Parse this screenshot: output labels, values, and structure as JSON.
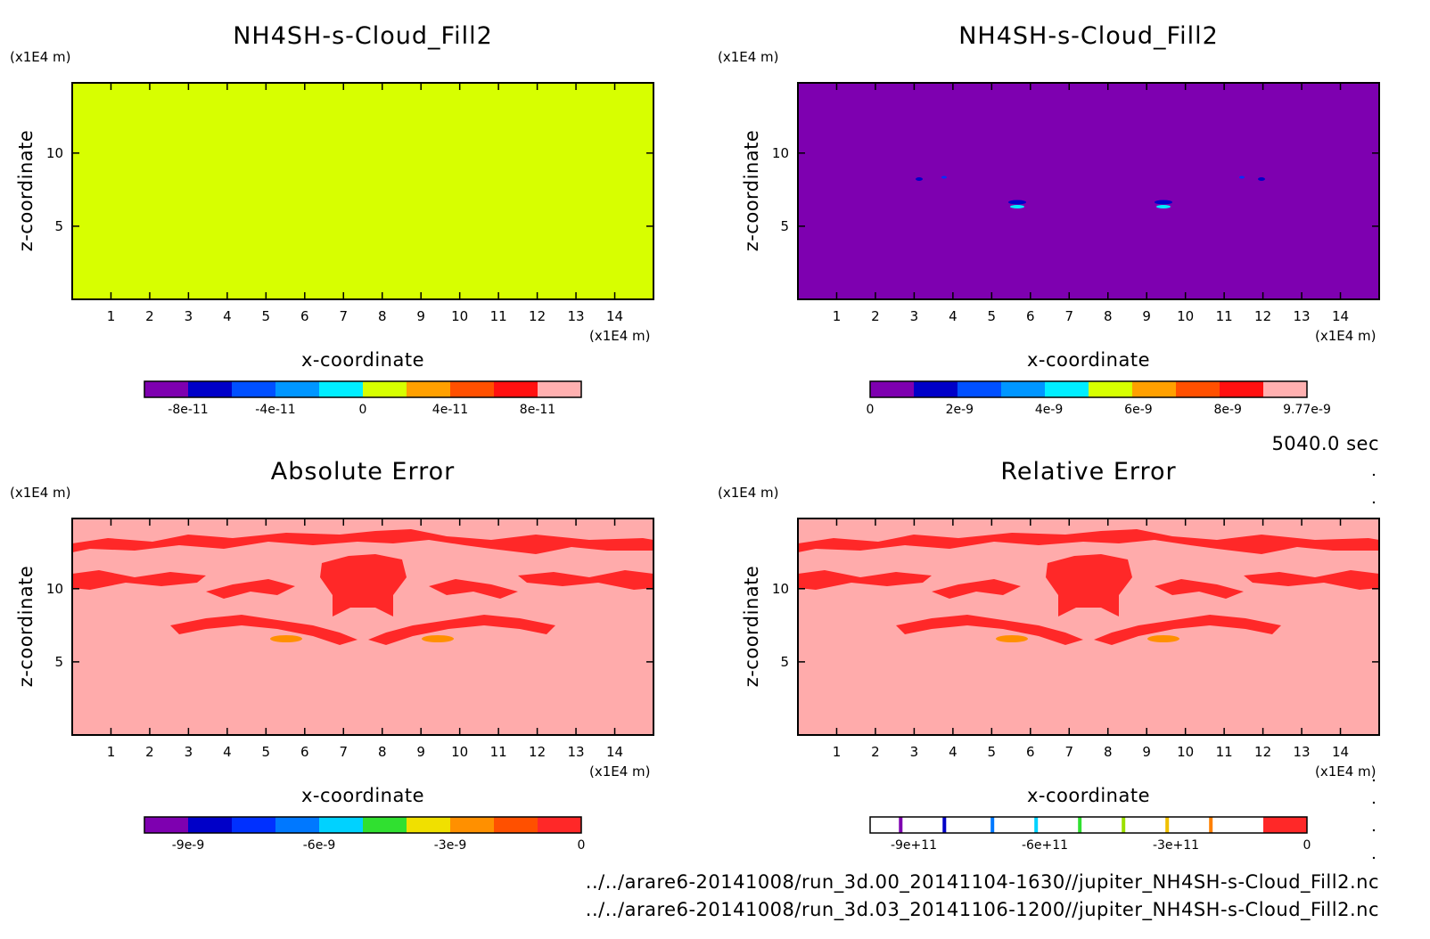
{
  "chart_data": [
    {
      "type": "heatmap",
      "title": "NH4SH-s-Cloud_Fill2",
      "xlabel": "x-coordinate",
      "ylabel": "z-coordinate",
      "x_unit": "(x1E4 m)",
      "y_unit": "(x1E4 m)",
      "xlim": [
        0,
        15
      ],
      "ylim": [
        0,
        14.8
      ],
      "xticks": [
        1,
        2,
        3,
        4,
        5,
        6,
        7,
        8,
        9,
        10,
        11,
        12,
        13,
        14
      ],
      "yticks": [
        5,
        10
      ],
      "field": "uniform",
      "fill_color": "#d7ff00",
      "colorbar": {
        "colors": [
          "#7e00b0",
          "#0000c8",
          "#0050ff",
          "#0096ff",
          "#00eeff",
          "#d7ff00",
          "#ffa000",
          "#ff5000",
          "#ff1010",
          "#ffb0b0"
        ],
        "range": [
          -1e-10,
          1e-10
        ],
        "tick_values": [
          -8e-11,
          -4e-11,
          0,
          4e-11,
          8e-11
        ],
        "tick_labels": [
          "-8e-11",
          "-4e-11",
          "0",
          "4e-11",
          "8e-11"
        ]
      }
    },
    {
      "type": "heatmap",
      "title": "NH4SH-s-Cloud_Fill2",
      "xlabel": "x-coordinate",
      "ylabel": "z-coordinate",
      "x_unit": "(x1E4 m)",
      "y_unit": "(x1E4 m)",
      "xlim": [
        0,
        15
      ],
      "ylim": [
        0,
        14.8
      ],
      "xticks": [
        1,
        2,
        3,
        4,
        5,
        6,
        7,
        8,
        9,
        10,
        11,
        12,
        13,
        14
      ],
      "yticks": [
        5,
        10
      ],
      "field": "sparse",
      "fill_color": "#7e00b0",
      "colorbar": {
        "colors": [
          "#7e00b0",
          "#0000c8",
          "#0050ff",
          "#0096ff",
          "#00eeff",
          "#d7ff00",
          "#ffa000",
          "#ff5000",
          "#ff1010",
          "#ffb0b0"
        ],
        "range": [
          0,
          9.77e-09
        ],
        "tick_values": [
          0,
          2e-09,
          4e-09,
          6e-09,
          8e-09,
          9.77e-09
        ],
        "tick_labels": [
          "0",
          "2e-9",
          "4e-9",
          "6e-9",
          "8e-9",
          "9.77e-9"
        ]
      }
    },
    {
      "type": "heatmap",
      "title": "Absolute Error",
      "xlabel": "x-coordinate",
      "ylabel": "z-coordinate",
      "x_unit": "(x1E4 m)",
      "y_unit": "(x1E4 m)",
      "xlim": [
        0,
        15
      ],
      "ylim": [
        0,
        14.8
      ],
      "xticks": [
        1,
        2,
        3,
        4,
        5,
        6,
        7,
        8,
        9,
        10,
        11,
        12,
        13,
        14
      ],
      "yticks": [
        5,
        10
      ],
      "field": "error",
      "fill_color": "#ffabab",
      "colorbar": {
        "colors": [
          "#7e00b0",
          "#0000c8",
          "#0030ff",
          "#0078ff",
          "#00d2ff",
          "#30e030",
          "#f0e000",
          "#ff9000",
          "#ff5000",
          "#ff2828"
        ],
        "range": [
          -1e-08,
          0
        ],
        "tick_values": [
          -9e-09,
          -6e-09,
          -3e-09,
          0
        ],
        "tick_labels": [
          "-9e-9",
          "-6e-9",
          "-3e-9",
          "0"
        ]
      }
    },
    {
      "type": "heatmap",
      "title": "Relative Error",
      "xlabel": "x-coordinate",
      "ylabel": "z-coordinate",
      "x_unit": "(x1E4 m)",
      "y_unit": "(x1E4 m)",
      "xlim": [
        0,
        15
      ],
      "ylim": [
        0,
        14.8
      ],
      "xticks": [
        1,
        2,
        3,
        4,
        5,
        6,
        7,
        8,
        9,
        10,
        11,
        12,
        13,
        14
      ],
      "yticks": [
        5,
        10
      ],
      "field": "error",
      "fill_color": "#ffabab",
      "colorbar": {
        "style": "lines",
        "range": [
          -1000000000000.0,
          0
        ],
        "line_values": [
          -930000000000.0,
          -830000000000.0,
          -720000000000.0,
          -620000000000.0,
          -520000000000.0,
          -420000000000.0,
          -320000000000.0,
          -220000000000.0
        ],
        "line_colors": [
          "#7e00b0",
          "#0000c8",
          "#0078ff",
          "#00d2ff",
          "#30e030",
          "#9ce000",
          "#f0c000",
          "#ff8000"
        ],
        "last_color": "#ff2828",
        "tick_values": [
          -900000000000.0,
          -600000000000.0,
          -300000000000.0,
          0
        ],
        "tick_labels": [
          "-9e+11",
          "-6e+11",
          "-3e+11",
          "0"
        ]
      }
    }
  ],
  "time_label": "5040.0 sec",
  "footer": {
    "line1": "../../arare6-20141008/run_3d.00_20141104-1630//jupiter_NH4SH-s-Cloud_Fill2.nc",
    "line2": "../../arare6-20141008/run_3d.03_20141106-1200//jupiter_NH4SH-s-Cloud_Fill2.nc"
  }
}
